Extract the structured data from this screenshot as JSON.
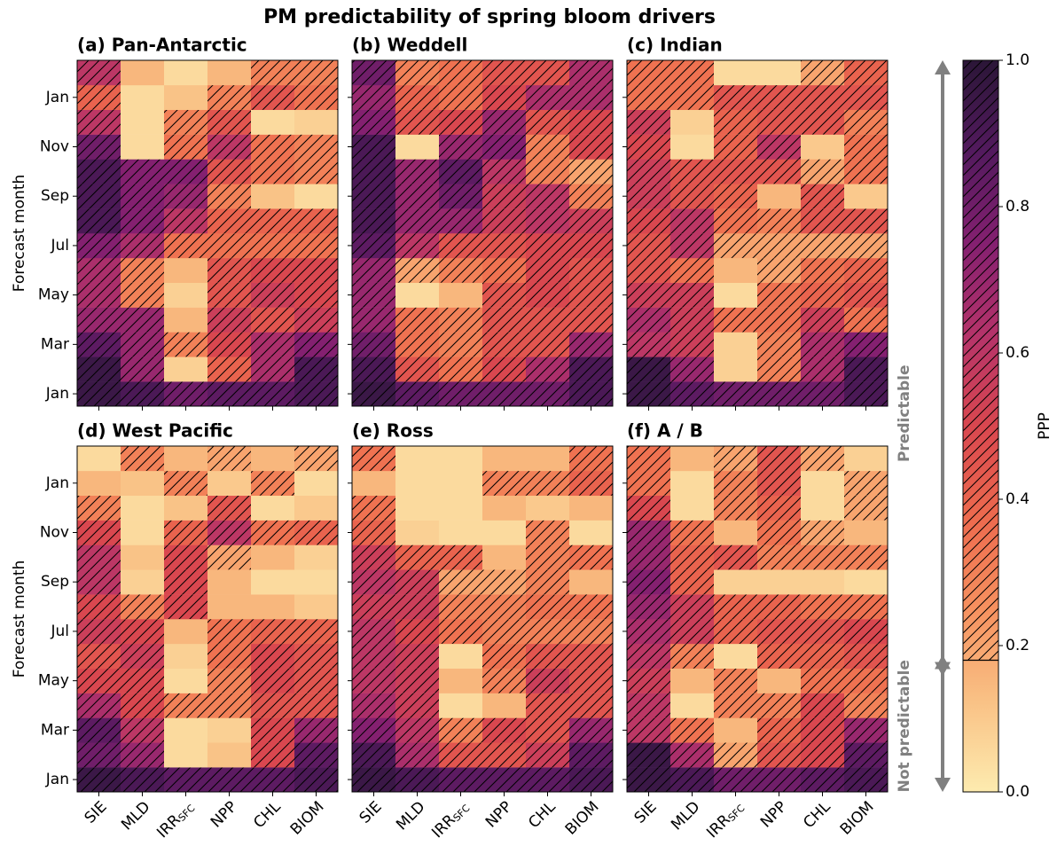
{
  "chart_data": {
    "type": "heatmap",
    "title": "PM predictability of spring bloom drivers",
    "categories": [
      "SIE",
      "MLD",
      "IRR",
      "NPP",
      "CHL",
      "BIOM"
    ],
    "category_subscripts": [
      null,
      null,
      "SFC",
      null,
      null,
      null
    ],
    "y_categories": [
      "Jan",
      null,
      "Mar",
      null,
      "May",
      null,
      "Jul",
      null,
      "Sep",
      null,
      "Nov",
      null,
      "Jan",
      null
    ],
    "ylabel": "Forecast month",
    "colorbar": {
      "label": "PPP",
      "lim": [
        0,
        1
      ],
      "ticks": [
        {
          "value": 0,
          "label": "0.0"
        },
        0.2,
        0.4,
        0.6,
        0.8,
        {
          "value": 1,
          "label": "1.0"
        }
      ],
      "threshold": 0.18,
      "colormap": [
        "#fdebaf",
        "#f9c185",
        "#f6915f",
        "#ed6a4e",
        "#d9474f",
        "#b5336a",
        "#842070",
        "#531a5e",
        "#2b1637"
      ]
    },
    "annotations": {
      "above": "Predictable",
      "below": "Not predictable"
    },
    "panels": [
      {
        "title": "(a) Pan-Antarctic",
        "values": [
          [
            0.95,
            0.9,
            0.8,
            0.85,
            0.85,
            0.9
          ],
          [
            0.95,
            0.7,
            0.08,
            0.4,
            0.65,
            0.9
          ],
          [
            0.85,
            0.7,
            0.3,
            0.5,
            0.65,
            0.75
          ],
          [
            0.7,
            0.7,
            0.15,
            0.55,
            0.45,
            0.55
          ],
          [
            0.65,
            0.3,
            0.08,
            0.45,
            0.55,
            0.5
          ],
          [
            0.65,
            0.3,
            0.15,
            0.45,
            0.5,
            0.5
          ],
          [
            0.75,
            0.65,
            0.35,
            0.35,
            0.35,
            0.35
          ],
          [
            0.9,
            0.75,
            0.6,
            0.4,
            0.4,
            0.4
          ],
          [
            0.9,
            0.75,
            0.7,
            0.3,
            0.12,
            0.05
          ],
          [
            0.9,
            0.75,
            0.75,
            0.45,
            0.35,
            0.3
          ],
          [
            0.8,
            0.05,
            0.35,
            0.6,
            0.35,
            0.3
          ],
          [
            0.6,
            0.05,
            0.3,
            0.45,
            0.05,
            0.08
          ],
          [
            0.4,
            0.05,
            0.12,
            0.3,
            0.45,
            0.35
          ],
          [
            0.6,
            0.15,
            0.05,
            0.15,
            0.3,
            0.3
          ]
        ]
      },
      {
        "title": "(b) Weddell",
        "values": [
          [
            0.95,
            0.85,
            0.8,
            0.8,
            0.8,
            0.9
          ],
          [
            0.9,
            0.45,
            0.35,
            0.5,
            0.65,
            0.9
          ],
          [
            0.8,
            0.35,
            0.3,
            0.45,
            0.45,
            0.7
          ],
          [
            0.7,
            0.35,
            0.3,
            0.45,
            0.45,
            0.45
          ],
          [
            0.7,
            0.05,
            0.15,
            0.45,
            0.5,
            0.45
          ],
          [
            0.7,
            0.2,
            0.3,
            0.35,
            0.5,
            0.45
          ],
          [
            0.85,
            0.6,
            0.45,
            0.45,
            0.5,
            0.5
          ],
          [
            0.9,
            0.7,
            0.7,
            0.55,
            0.6,
            0.55
          ],
          [
            0.9,
            0.7,
            0.8,
            0.55,
            0.6,
            0.3
          ],
          [
            0.9,
            0.7,
            0.85,
            0.6,
            0.3,
            0.2
          ],
          [
            0.9,
            0.05,
            0.7,
            0.75,
            0.3,
            0.5
          ],
          [
            0.75,
            0.45,
            0.5,
            0.7,
            0.45,
            0.5
          ],
          [
            0.7,
            0.4,
            0.35,
            0.5,
            0.65,
            0.65
          ],
          [
            0.8,
            0.3,
            0.35,
            0.45,
            0.45,
            0.65
          ]
        ]
      },
      {
        "title": "(c) Indian",
        "values": [
          [
            0.95,
            0.85,
            0.8,
            0.8,
            0.8,
            0.9
          ],
          [
            0.95,
            0.7,
            0.08,
            0.3,
            0.65,
            0.9
          ],
          [
            0.6,
            0.55,
            0.08,
            0.3,
            0.65,
            0.75
          ],
          [
            0.65,
            0.55,
            0.35,
            0.35,
            0.55,
            0.35
          ],
          [
            0.55,
            0.55,
            0.05,
            0.35,
            0.4,
            0.45
          ],
          [
            0.45,
            0.35,
            0.15,
            0.2,
            0.35,
            0.4
          ],
          [
            0.45,
            0.6,
            0.2,
            0.2,
            0.2,
            0.2
          ],
          [
            0.5,
            0.6,
            0.35,
            0.3,
            0.45,
            0.45
          ],
          [
            0.55,
            0.45,
            0.4,
            0.15,
            0.45,
            0.1
          ],
          [
            0.55,
            0.45,
            0.45,
            0.45,
            0.2,
            0.35
          ],
          [
            0.5,
            0.05,
            0.4,
            0.6,
            0.1,
            0.35
          ],
          [
            0.55,
            0.08,
            0.4,
            0.45,
            0.45,
            0.3
          ],
          [
            0.35,
            0.35,
            0.45,
            0.45,
            0.45,
            0.45
          ],
          [
            0.35,
            0.35,
            0.05,
            0.05,
            0.2,
            0.4
          ]
        ]
      },
      {
        "title": "(d) West Pacific",
        "values": [
          [
            0.95,
            0.9,
            0.85,
            0.85,
            0.85,
            0.9
          ],
          [
            0.8,
            0.7,
            0.05,
            0.12,
            0.5,
            0.85
          ],
          [
            0.85,
            0.6,
            0.05,
            0.08,
            0.5,
            0.7
          ],
          [
            0.65,
            0.5,
            0.3,
            0.3,
            0.45,
            0.45
          ],
          [
            0.5,
            0.5,
            0.05,
            0.3,
            0.5,
            0.45
          ],
          [
            0.45,
            0.55,
            0.08,
            0.35,
            0.5,
            0.45
          ],
          [
            0.55,
            0.5,
            0.15,
            0.35,
            0.4,
            0.4
          ],
          [
            0.5,
            0.3,
            0.5,
            0.15,
            0.15,
            0.1
          ],
          [
            0.6,
            0.08,
            0.5,
            0.15,
            0.05,
            0.05
          ],
          [
            0.6,
            0.12,
            0.5,
            0.2,
            0.15,
            0.08
          ],
          [
            0.5,
            0.05,
            0.4,
            0.6,
            0.35,
            0.4
          ],
          [
            0.3,
            0.05,
            0.12,
            0.45,
            0.05,
            0.1
          ],
          [
            0.15,
            0.12,
            0.3,
            0.1,
            0.3,
            0.05
          ],
          [
            0.05,
            0.3,
            0.15,
            0.2,
            0.15,
            0.2
          ]
        ]
      },
      {
        "title": "(e) Ross",
        "values": [
          [
            0.95,
            0.9,
            0.85,
            0.85,
            0.85,
            0.9
          ],
          [
            0.9,
            0.65,
            0.45,
            0.45,
            0.55,
            0.85
          ],
          [
            0.75,
            0.6,
            0.3,
            0.5,
            0.45,
            0.7
          ],
          [
            0.65,
            0.55,
            0.05,
            0.15,
            0.45,
            0.45
          ],
          [
            0.6,
            0.55,
            0.15,
            0.3,
            0.55,
            0.45
          ],
          [
            0.6,
            0.55,
            0.05,
            0.35,
            0.45,
            0.45
          ],
          [
            0.6,
            0.5,
            0.35,
            0.3,
            0.3,
            0.3
          ],
          [
            0.55,
            0.55,
            0.3,
            0.3,
            0.35,
            0.35
          ],
          [
            0.6,
            0.55,
            0.2,
            0.2,
            0.3,
            0.15
          ],
          [
            0.55,
            0.4,
            0.4,
            0.15,
            0.3,
            0.35
          ],
          [
            0.4,
            0.08,
            0.05,
            0.05,
            0.3,
            0.05
          ],
          [
            0.35,
            0.05,
            0.05,
            0.15,
            0.1,
            0.15
          ],
          [
            0.15,
            0.05,
            0.05,
            0.3,
            0.3,
            0.4
          ],
          [
            0.35,
            0.05,
            0.05,
            0.15,
            0.15,
            0.35
          ]
        ]
      },
      {
        "title": "(f) A / B",
        "values": [
          [
            0.95,
            0.9,
            0.8,
            0.8,
            0.85,
            0.9
          ],
          [
            0.95,
            0.65,
            0.2,
            0.45,
            0.5,
            0.85
          ],
          [
            0.6,
            0.35,
            0.15,
            0.4,
            0.5,
            0.7
          ],
          [
            0.6,
            0.05,
            0.3,
            0.3,
            0.5,
            0.3
          ],
          [
            0.55,
            0.15,
            0.3,
            0.15,
            0.35,
            0.35
          ],
          [
            0.6,
            0.3,
            0.05,
            0.4,
            0.4,
            0.45
          ],
          [
            0.65,
            0.55,
            0.4,
            0.45,
            0.45,
            0.5
          ],
          [
            0.7,
            0.55,
            0.4,
            0.4,
            0.35,
            0.35
          ],
          [
            0.75,
            0.4,
            0.08,
            0.08,
            0.08,
            0.05
          ],
          [
            0.7,
            0.4,
            0.45,
            0.3,
            0.3,
            0.3
          ],
          [
            0.7,
            0.35,
            0.15,
            0.35,
            0.2,
            0.15
          ],
          [
            0.5,
            0.05,
            0.3,
            0.4,
            0.05,
            0.2
          ],
          [
            0.35,
            0.05,
            0.3,
            0.45,
            0.05,
            0.2
          ],
          [
            0.35,
            0.15,
            0.2,
            0.45,
            0.2,
            0.08
          ]
        ]
      }
    ]
  }
}
